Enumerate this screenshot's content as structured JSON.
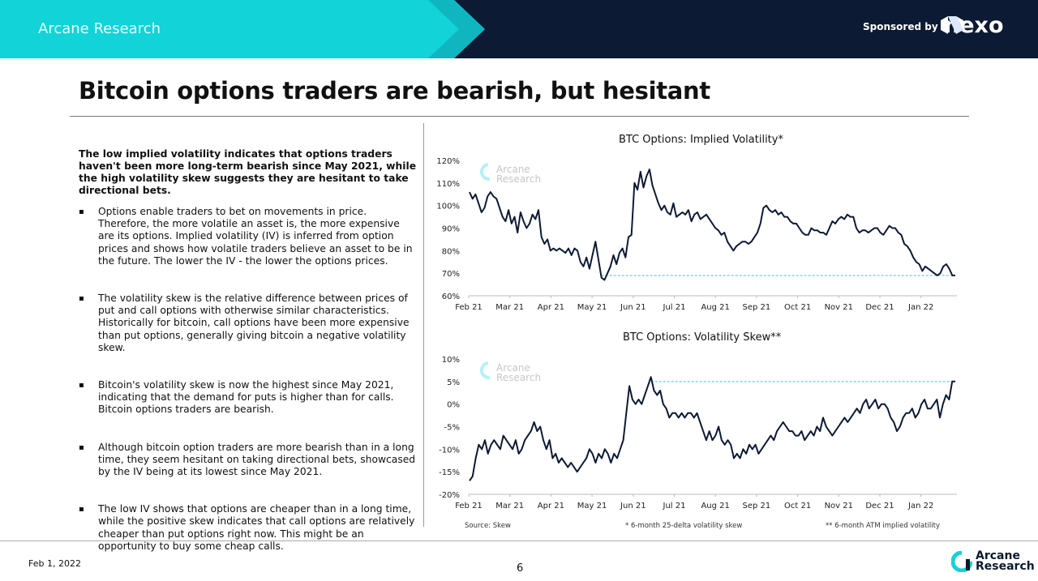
{
  "header": {
    "brand": "Arcane Research",
    "sponsored_by": "Sponsored by",
    "sponsor_name": "nexo",
    "colors": {
      "teal": "#11d3d8",
      "navy": "#0d1a33"
    }
  },
  "slide_title": "Bitcoin options traders are bearish, but hesitant",
  "intro": "The low implied volatility indicates that options traders haven't been more long-term bearish since May 2021, while the high volatility skew suggests they are hesitant to take directional bets.",
  "bullets": [
    "Options enable traders to bet on movements in price. Therefore, the more volatile an asset is, the more expensive are its options. Implied volatility (IV) is inferred from option prices and shows how volatile traders believe an asset to be in the future. The lower the IV - the lower the options prices.",
    "The volatility skew is the relative difference between prices of put and call options with otherwise similar characteristics. Historically for bitcoin, call options have been more expensive than put options, generally giving bitcoin a negative volatility skew.",
    "Bitcoin's volatility skew is now the highest since May 2021, indicating that the demand for puts is higher than for calls. Bitcoin options traders are bearish.",
    "Although bitcoin option traders are more bearish than in a long time, they seem hesitant on taking directional bets, showcased by the IV being at its lowest since May 2021.",
    "The low IV shows that options are cheaper than in a long time, while the positive skew indicates that call options are relatively cheaper than put options right now. This might be an opportunity to buy some cheap calls."
  ],
  "bullet_symbol": "▪",
  "watermark": {
    "line1": "Arcane",
    "line2": "Research"
  },
  "chart_data": [
    {
      "type": "line",
      "title": "BTC Options: Implied Volatility*",
      "x_tick_labels": [
        "Feb 21",
        "Mar 21",
        "Apr 21",
        "May 21",
        "Jun 21",
        "Jul 21",
        "Aug 21",
        "Sep 21",
        "Oct 21",
        "Nov 21",
        "Dec 21",
        "Jan 22"
      ],
      "y_tick_labels": [
        "120%",
        "110%",
        "100%",
        "90%",
        "80%",
        "70%",
        "60%"
      ],
      "ylim": [
        60,
        120
      ],
      "y_unit": "%",
      "reference_line": {
        "value": 69,
        "style": "dashed",
        "color": "#3fc4d6"
      },
      "line_color": "#0d1a33",
      "series": [
        {
          "values": [
            106,
            103,
            105,
            101,
            97,
            99,
            104,
            106,
            104,
            103,
            99,
            95,
            93,
            98,
            92,
            95,
            88,
            97,
            93,
            90,
            92,
            96,
            94,
            98,
            86,
            83,
            85,
            80,
            81,
            80,
            81,
            80,
            79,
            81,
            78,
            81,
            80,
            75,
            73,
            77,
            72,
            78,
            84,
            76,
            68,
            67,
            70,
            73,
            78,
            74,
            79,
            81,
            77,
            86,
            87,
            110,
            107,
            115,
            108,
            113,
            116,
            109,
            105,
            101,
            98,
            100,
            97,
            96,
            101,
            95,
            96,
            97,
            96,
            98,
            93,
            96,
            97,
            94,
            95,
            96,
            94,
            92,
            90,
            89,
            87,
            88,
            84,
            82,
            80,
            82,
            83,
            84,
            84,
            83,
            84,
            86,
            88,
            92,
            99,
            100,
            98,
            97,
            98,
            96,
            97,
            95,
            95,
            93,
            92,
            92,
            90,
            88,
            87,
            87,
            90,
            89,
            89,
            88,
            88,
            87,
            90,
            93,
            92,
            94,
            95,
            94,
            96,
            95,
            95,
            90,
            88,
            89,
            89,
            88,
            89,
            90,
            90,
            88,
            87,
            89,
            91,
            90,
            90,
            88,
            87,
            83,
            82,
            80,
            77,
            75,
            74,
            71,
            73,
            72,
            71,
            70,
            69,
            70,
            73,
            74,
            72,
            69,
            69
          ]
        }
      ]
    },
    {
      "type": "line",
      "title": "BTC Options: Volatility Skew**",
      "x_tick_labels": [
        "Feb 21",
        "Mar 21",
        "Apr 21",
        "May 21",
        "Jun 21",
        "Jul 21",
        "Aug 21",
        "Sep 21",
        "Oct 21",
        "Nov 21",
        "Dec 21",
        "Jan 22"
      ],
      "y_tick_labels": [
        "10%",
        "5%",
        "0%",
        "-5%",
        "-10%",
        "-15%",
        "-20%"
      ],
      "ylim": [
        -20,
        10
      ],
      "y_unit": "%",
      "reference_line": {
        "value": 5,
        "style": "dashed",
        "color": "#3fc4d6"
      },
      "line_color": "#0d1a33",
      "series": [
        {
          "values": [
            -17,
            -16,
            -12,
            -9,
            -10,
            -8,
            -11,
            -9,
            -8,
            -9,
            -10,
            -7,
            -8,
            -9,
            -10,
            -8,
            -11,
            -10,
            -8,
            -7,
            -6,
            -4,
            -6,
            -5,
            -8,
            -10,
            -8,
            -12,
            -11,
            -13,
            -12,
            -13,
            -14,
            -13,
            -14,
            -15,
            -14,
            -13,
            -12,
            -10,
            -11,
            -13,
            -11,
            -12,
            -10,
            -11,
            -13,
            -11,
            -12,
            -10,
            -8,
            -2,
            4,
            1,
            0,
            1,
            0,
            2,
            4,
            6,
            3,
            2,
            3,
            0,
            -1,
            -3,
            -2,
            -2,
            -3,
            -2,
            -3,
            -2,
            -2,
            -3,
            -2,
            -4,
            -6,
            -8,
            -6,
            -8,
            -7,
            -5,
            -8,
            -9,
            -8,
            -9,
            -12,
            -11,
            -12,
            -10,
            -11,
            -9,
            -10,
            -9,
            -11,
            -10,
            -9,
            -8,
            -7,
            -8,
            -6,
            -5,
            -4,
            -5,
            -6,
            -6,
            -7,
            -7,
            -6,
            -8,
            -7,
            -6,
            -7,
            -5,
            -6,
            -3,
            -5,
            -6,
            -7,
            -6,
            -5,
            -4,
            -3,
            -4,
            -3,
            -2,
            -1,
            -2,
            0,
            1,
            -1,
            0,
            1,
            -1,
            0,
            0,
            -1,
            -3,
            -4,
            -6,
            -5,
            -3,
            -2,
            -2,
            -1,
            -3,
            -2,
            0,
            1,
            -1,
            -1,
            0,
            1,
            -3,
            0,
            2,
            1,
            5,
            5
          ]
        }
      ]
    }
  ],
  "footnotes": {
    "source": "Source: Skew",
    "note1": "* 6-month 25-delta volatility skew",
    "note2": "** 6-month ATM implied volatility"
  },
  "footer": {
    "date": "Feb 1, 2022",
    "page": "6",
    "logo_line1": "Arcane",
    "logo_line2": "Research"
  }
}
